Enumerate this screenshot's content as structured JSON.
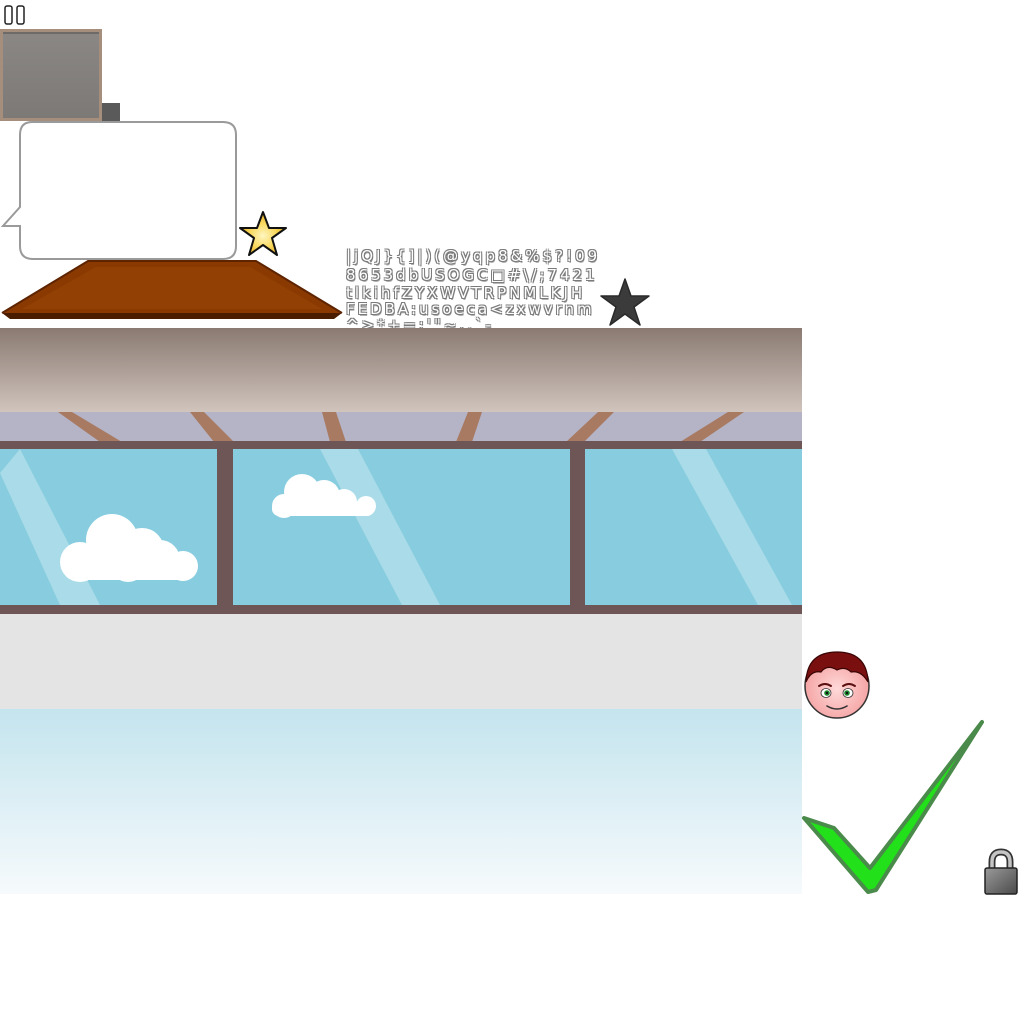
{
  "font_atlas": {
    "rows": [
      "|jQJ}{]|)(@yqp8&%$?!09",
      "8653dbUSOGC□#\\/;7421",
      "tlkihfZYXWVTRPNMLKJH",
      "FEDBA:usoeca<zxwvrnm",
      "^>*+=:'\"~.,`-"
    ]
  },
  "colors": {
    "sky": "#88cddf",
    "window_frame": "#6e5656",
    "wall_top": "#8b7a72",
    "platform_wood": "#8a3a00",
    "check_green": "#22e01a",
    "star_gold": "#f5c52a",
    "star_dark": "#3b3b3b"
  },
  "icons": [
    "pause-icon",
    "stone-tile",
    "speech-bubble",
    "gold-star-icon",
    "wooden-platform",
    "dark-star-icon",
    "room-scene-background",
    "character-face",
    "check-mark-icon",
    "lock-icon"
  ]
}
